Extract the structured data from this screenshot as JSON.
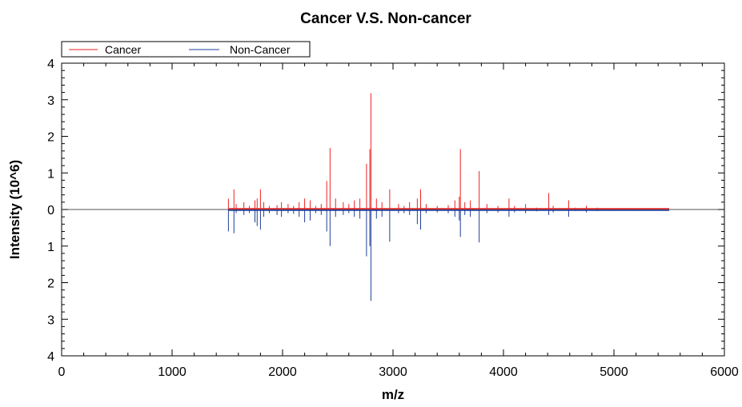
{
  "chart_data": {
    "type": "line",
    "title": "Cancer V.S. Non-cancer",
    "xlabel": "m/z",
    "ylabel": "Intensity (10^6)",
    "xlim": [
      0,
      6000
    ],
    "ylim": [
      -4,
      4
    ],
    "x_ticks": [
      0,
      1000,
      2000,
      3000,
      4000,
      5000,
      6000
    ],
    "y_tick_values": [
      4,
      3,
      2,
      1,
      0,
      -1,
      -2,
      -3,
      -4
    ],
    "y_tick_labels": [
      "4",
      "3",
      "2",
      "1",
      "0",
      "1",
      "2",
      "3",
      "4"
    ],
    "mirror_plot": true,
    "legend_position": "top-left",
    "grid": false,
    "colors": {
      "cancer": "#ee2222",
      "non_cancer": "#1f3f99",
      "axis": "#000000",
      "baseline": "#555555"
    },
    "series": [
      {
        "name": "Cancer",
        "direction": "up",
        "x": [
          1510,
          1560,
          1580,
          1650,
          1700,
          1750,
          1770,
          1800,
          1830,
          1880,
          1950,
          1990,
          2050,
          2100,
          2150,
          2200,
          2250,
          2300,
          2350,
          2400,
          2430,
          2480,
          2550,
          2600,
          2650,
          2700,
          2760,
          2790,
          2800,
          2850,
          2900,
          2970,
          3050,
          3100,
          3150,
          3220,
          3250,
          3300,
          3400,
          3500,
          3560,
          3600,
          3610,
          3650,
          3700,
          3780,
          3850,
          3950,
          4050,
          4100,
          4200,
          4300,
          4410,
          4450,
          4590,
          4650,
          4750,
          4850,
          5000,
          5200,
          5500
        ],
        "values": [
          0.3,
          0.55,
          0.15,
          0.2,
          0.1,
          0.25,
          0.3,
          0.55,
          0.2,
          0.1,
          0.12,
          0.2,
          0.15,
          0.1,
          0.2,
          0.3,
          0.25,
          0.1,
          0.15,
          0.78,
          1.68,
          0.3,
          0.2,
          0.15,
          0.25,
          0.3,
          1.25,
          1.65,
          3.18,
          0.3,
          0.2,
          0.55,
          0.15,
          0.1,
          0.2,
          0.3,
          0.55,
          0.15,
          0.1,
          0.12,
          0.25,
          0.35,
          1.65,
          0.2,
          0.25,
          1.05,
          0.15,
          0.1,
          0.3,
          0.1,
          0.15,
          0.05,
          0.45,
          0.1,
          0.25,
          0.05,
          0.1,
          0.05,
          0.03,
          0.02,
          0.01
        ]
      },
      {
        "name": "Non-Cancer",
        "direction": "down",
        "x": [
          1510,
          1560,
          1580,
          1650,
          1700,
          1750,
          1770,
          1800,
          1830,
          1880,
          1950,
          1990,
          2050,
          2100,
          2150,
          2200,
          2250,
          2300,
          2350,
          2400,
          2430,
          2480,
          2550,
          2600,
          2650,
          2700,
          2760,
          2790,
          2800,
          2850,
          2900,
          2970,
          3050,
          3100,
          3150,
          3220,
          3250,
          3300,
          3400,
          3500,
          3560,
          3600,
          3610,
          3650,
          3700,
          3780,
          3850,
          3950,
          4050,
          4100,
          4200,
          4300,
          4410,
          4450,
          4590,
          4650,
          4750,
          4850,
          5000,
          5200,
          5500
        ],
        "values": [
          0.6,
          0.65,
          0.1,
          0.15,
          0.1,
          0.35,
          0.45,
          0.55,
          0.2,
          0.1,
          0.15,
          0.2,
          0.1,
          0.12,
          0.2,
          0.35,
          0.3,
          0.1,
          0.15,
          0.6,
          1.0,
          0.2,
          0.15,
          0.1,
          0.2,
          0.25,
          1.28,
          1.0,
          2.5,
          0.25,
          0.2,
          0.88,
          0.1,
          0.1,
          0.15,
          0.4,
          0.55,
          0.1,
          0.08,
          0.1,
          0.2,
          0.3,
          0.75,
          0.15,
          0.2,
          0.9,
          0.1,
          0.08,
          0.2,
          0.08,
          0.1,
          0.05,
          0.15,
          0.08,
          0.2,
          0.04,
          0.08,
          0.04,
          0.02,
          0.02,
          0.01
        ]
      }
    ]
  }
}
